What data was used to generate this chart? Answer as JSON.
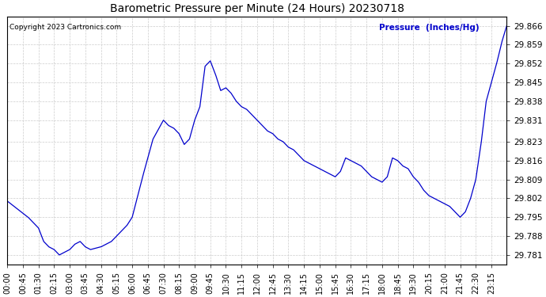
{
  "title": "Barometric Pressure per Minute (24 Hours) 20230718",
  "copyright": "Copyright 2023 Cartronics.com",
  "ylabel": "Pressure  (Inches/Hg)",
  "line_color": "#0000CC",
  "background_color": "#ffffff",
  "grid_color": "#cccccc",
  "ylabel_color": "#0000CC",
  "title_color": "#000000",
  "copyright_color": "#000000",
  "ylim_min": 29.7775,
  "ylim_max": 29.8695,
  "yticks": [
    29.781,
    29.788,
    29.795,
    29.802,
    29.809,
    29.816,
    29.823,
    29.831,
    29.838,
    29.845,
    29.852,
    29.859,
    29.866
  ],
  "xtick_labels": [
    "00:00",
    "00:45",
    "01:30",
    "02:15",
    "03:00",
    "03:45",
    "04:30",
    "05:15",
    "06:00",
    "06:45",
    "07:30",
    "08:15",
    "09:00",
    "09:45",
    "10:30",
    "11:15",
    "12:00",
    "12:45",
    "13:30",
    "14:15",
    "15:00",
    "15:45",
    "16:30",
    "17:15",
    "18:00",
    "18:45",
    "19:30",
    "20:15",
    "21:00",
    "21:45",
    "22:30",
    "23:15"
  ],
  "key_x": [
    0,
    30,
    60,
    90,
    105,
    120,
    135,
    150,
    165,
    180,
    195,
    210,
    225,
    240,
    270,
    300,
    315,
    330,
    345,
    360,
    390,
    420,
    450,
    465,
    480,
    495,
    510,
    525,
    540,
    555,
    570,
    585,
    600,
    615,
    630,
    645,
    660,
    675,
    690,
    705,
    720,
    735,
    750,
    765,
    780,
    795,
    810,
    825,
    840,
    855,
    870,
    885,
    900,
    915,
    930,
    945,
    960,
    975,
    990,
    1005,
    1020,
    1035,
    1050,
    1065,
    1080,
    1095,
    1110,
    1125,
    1140,
    1155,
    1170,
    1185,
    1200,
    1215,
    1230,
    1245,
    1260,
    1275,
    1290,
    1305,
    1320,
    1335,
    1350,
    1365,
    1380,
    1395,
    1410,
    1425,
    1439
  ],
  "key_y": [
    29.801,
    29.798,
    29.795,
    29.791,
    29.786,
    29.784,
    29.783,
    29.781,
    29.782,
    29.783,
    29.785,
    29.786,
    29.784,
    29.783,
    29.784,
    29.786,
    29.788,
    29.79,
    29.792,
    29.795,
    29.81,
    29.824,
    29.831,
    29.829,
    29.828,
    29.826,
    29.822,
    29.824,
    29.831,
    29.836,
    29.851,
    29.853,
    29.848,
    29.842,
    29.843,
    29.841,
    29.838,
    29.836,
    29.835,
    29.833,
    29.831,
    29.829,
    29.827,
    29.826,
    29.824,
    29.823,
    29.821,
    29.82,
    29.818,
    29.816,
    29.815,
    29.814,
    29.813,
    29.812,
    29.811,
    29.81,
    29.812,
    29.817,
    29.816,
    29.815,
    29.814,
    29.812,
    29.81,
    29.809,
    29.808,
    29.81,
    29.817,
    29.816,
    29.814,
    29.813,
    29.81,
    29.808,
    29.805,
    29.803,
    29.802,
    29.801,
    29.8,
    29.799,
    29.797,
    29.795,
    29.797,
    29.802,
    29.809,
    29.822,
    29.838,
    29.845,
    29.852,
    29.86,
    29.866
  ]
}
